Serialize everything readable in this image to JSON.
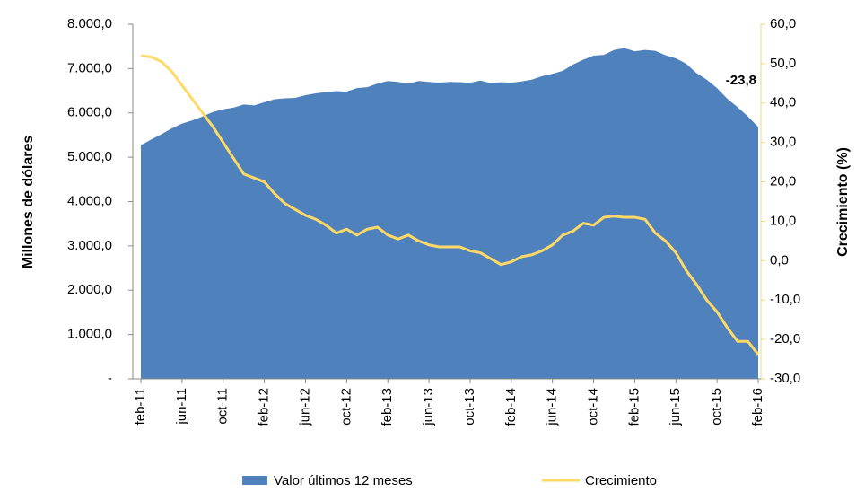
{
  "chart_data": {
    "type": "area-line",
    "y_label": "Millones de dólares",
    "y2_label": "Crecimiento  (%)",
    "categories": [
      "feb-11",
      null,
      null,
      null,
      "jun-11",
      null,
      null,
      null,
      "oct-11",
      null,
      null,
      null,
      "feb-12",
      null,
      null,
      null,
      "jun-12",
      null,
      null,
      null,
      "oct-12",
      null,
      null,
      null,
      "feb-13",
      null,
      null,
      null,
      "jun-13",
      null,
      null,
      null,
      "oct-13",
      null,
      null,
      null,
      "feb-14",
      null,
      null,
      null,
      "jun-14",
      null,
      null,
      null,
      "oct-14",
      null,
      null,
      null,
      "feb-15",
      null,
      null,
      null,
      "jun-15",
      null,
      null,
      null,
      "oct-15",
      null,
      null,
      null,
      "feb-16"
    ],
    "series": [
      {
        "name": "Valor últimos 12 meses",
        "color": "#4f81bd",
        "axis": "y",
        "values": [
          5270,
          5400,
          5520,
          5650,
          5760,
          5830,
          5920,
          6020,
          6080,
          6120,
          6190,
          6170,
          6240,
          6310,
          6330,
          6340,
          6400,
          6440,
          6470,
          6490,
          6480,
          6560,
          6580,
          6660,
          6720,
          6700,
          6660,
          6720,
          6700,
          6680,
          6700,
          6690,
          6680,
          6730,
          6670,
          6690,
          6680,
          6710,
          6750,
          6830,
          6880,
          6950,
          7090,
          7200,
          7290,
          7310,
          7420,
          7460,
          7390,
          7420,
          7400,
          7300,
          7230,
          7110,
          6900,
          6750,
          6560,
          6320,
          6130,
          5920,
          5680
        ]
      },
      {
        "name": "Crecimiento",
        "color": "#ffd966",
        "axis": "y2",
        "values": [
          52,
          51.7,
          50.5,
          48,
          44.5,
          41,
          37.5,
          34,
          30,
          26,
          22,
          21,
          20,
          17,
          14.5,
          13,
          11.5,
          10.5,
          9,
          7,
          8,
          6.5,
          8,
          8.5,
          6.5,
          5.5,
          6.5,
          5,
          4,
          3.5,
          3.5,
          3.5,
          2.5,
          2,
          0.5,
          -1,
          -0.3,
          1,
          1.5,
          2.5,
          4,
          6.5,
          7.5,
          9.5,
          9,
          11,
          11.3,
          11,
          11,
          10.5,
          7,
          5,
          2,
          -2.5,
          -6,
          -10,
          -13,
          -17,
          -20.5,
          -20.5,
          -23.8
        ],
        "value_labels": [
          null,
          null,
          null,
          null,
          null,
          null,
          null,
          null,
          null,
          null,
          null,
          null,
          null,
          null,
          null,
          null,
          null,
          null,
          null,
          null,
          null,
          null,
          null,
          null,
          null,
          null,
          null,
          null,
          null,
          null,
          null,
          null,
          null,
          null,
          null,
          null,
          null,
          null,
          null,
          null,
          null,
          null,
          null,
          null,
          null,
          null,
          null,
          null,
          null,
          null,
          null,
          null,
          null,
          null,
          null,
          null,
          null,
          null,
          null,
          null,
          "-23,8"
        ]
      }
    ],
    "ylim": [
      0,
      8000
    ],
    "yticks": [
      {
        "value": 0,
        "label": "-"
      },
      {
        "value": 1000,
        "label": "1.000,0"
      },
      {
        "value": 2000,
        "label": "2.000,0"
      },
      {
        "value": 3000,
        "label": "3.000,0"
      },
      {
        "value": 4000,
        "label": "4.000,0"
      },
      {
        "value": 5000,
        "label": "5.000,0"
      },
      {
        "value": 6000,
        "label": "6.000,0"
      },
      {
        "value": 7000,
        "label": "7.000,0"
      },
      {
        "value": 8000,
        "label": "8.000,0"
      }
    ],
    "y2lim": [
      -30,
      60
    ],
    "y2ticks": [
      {
        "value": -30,
        "label": "-30,0"
      },
      {
        "value": -20,
        "label": "-20,0"
      },
      {
        "value": -10,
        "label": "-10,0"
      },
      {
        "value": 0,
        "label": "0,0"
      },
      {
        "value": 10,
        "label": "10,0"
      },
      {
        "value": 20,
        "label": "20,0"
      },
      {
        "value": 30,
        "label": "30,0"
      },
      {
        "value": 40,
        "label": "40,0"
      },
      {
        "value": 50,
        "label": "50,0"
      },
      {
        "value": 60,
        "label": "60,0"
      }
    ],
    "y2_color": "#f2d675",
    "legend": "bottom"
  }
}
